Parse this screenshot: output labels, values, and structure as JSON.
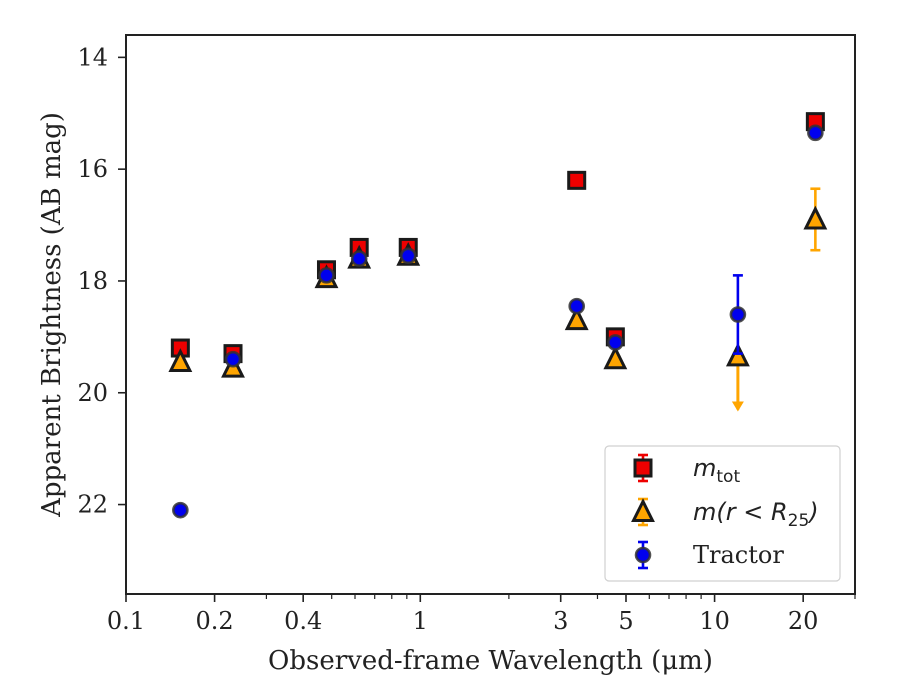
{
  "chart_data": {
    "type": "scatter",
    "xlabel": "Observed-frame Wavelength (μm)",
    "ylabel": "Apparent Brightness (AB mag)",
    "xscale": "log",
    "xlim": [
      0.1,
      30
    ],
    "ylim": [
      23.6,
      13.6
    ],
    "y_inverted": true,
    "grid": false,
    "legend_position": "lower-right",
    "x_ticks": [
      0.1,
      0.2,
      0.4,
      1,
      3,
      5,
      10,
      20
    ],
    "x_tick_labels": [
      "0.1",
      "0.2",
      "0.4",
      "1",
      "3",
      "5",
      "10",
      "20"
    ],
    "y_ticks": [
      14,
      16,
      18,
      20,
      22
    ],
    "y_tick_labels": [
      "14",
      "16",
      "18",
      "20",
      "22"
    ],
    "series": [
      {
        "name": "m_tot",
        "marker": "square",
        "color": "#ee0000",
        "edge_color": "#1a1a1a",
        "points": [
          {
            "x": 0.153,
            "y": 19.2,
            "err": 0.05
          },
          {
            "x": 0.231,
            "y": 19.3,
            "err": 0.05
          },
          {
            "x": 0.48,
            "y": 17.8,
            "err": 0.05
          },
          {
            "x": 0.62,
            "y": 17.4,
            "err": 0.05
          },
          {
            "x": 0.91,
            "y": 17.4,
            "err": 0.05
          },
          {
            "x": 3.4,
            "y": 16.2,
            "err": 0.05
          },
          {
            "x": 4.6,
            "y": 19.0,
            "err": 0.05
          },
          {
            "x": 22.0,
            "y": 15.15,
            "err": 0.05
          }
        ]
      },
      {
        "name": "m(r < R_25)",
        "marker": "triangle",
        "color": "#ffa500",
        "edge_color": "#1a1a1a",
        "points": [
          {
            "x": 0.153,
            "y": 19.45,
            "err": 0.05
          },
          {
            "x": 0.231,
            "y": 19.55,
            "err": 0.05
          },
          {
            "x": 0.48,
            "y": 17.95,
            "err": 0.05
          },
          {
            "x": 0.62,
            "y": 17.6,
            "err": 0.05
          },
          {
            "x": 0.91,
            "y": 17.55,
            "err": 0.05
          },
          {
            "x": 3.4,
            "y": 18.7,
            "err": 0.05
          },
          {
            "x": 4.6,
            "y": 19.4,
            "err": 0.05
          },
          {
            "x": 12.0,
            "y": 19.35,
            "err": 0.05,
            "upper_limit": true,
            "arrow_to": 20.3
          },
          {
            "x": 22.0,
            "y": 16.9,
            "err": 0.55
          }
        ]
      },
      {
        "name": "Tractor",
        "marker": "circle",
        "color": "#0000ee",
        "edge_color": "#333333",
        "points": [
          {
            "x": 0.153,
            "y": 22.1,
            "err": 0.05
          },
          {
            "x": 0.231,
            "y": 19.4,
            "err": 0.05
          },
          {
            "x": 0.48,
            "y": 17.9,
            "err": 0.05
          },
          {
            "x": 0.62,
            "y": 17.6,
            "err": 0.05
          },
          {
            "x": 0.91,
            "y": 17.55,
            "err": 0.05
          },
          {
            "x": 3.4,
            "y": 18.45,
            "err": 0.05
          },
          {
            "x": 4.6,
            "y": 19.1,
            "err": 0.05
          },
          {
            "x": 12.0,
            "y": 18.6,
            "err": 0.7
          },
          {
            "x": 22.0,
            "y": 15.35,
            "err": 0.05
          }
        ]
      }
    ]
  }
}
